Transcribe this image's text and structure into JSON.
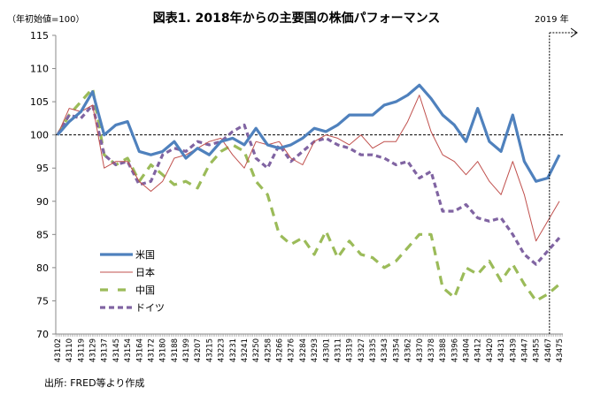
{
  "chart_data": {
    "type": "line",
    "title": "図表1. 2018年からの主要国の株価パフォーマンス",
    "ylabel": "（年初始値=100）",
    "annotation": "2019 年",
    "source": "出所: FRED等より作成",
    "ylim": [
      70,
      115
    ],
    "yticks": [
      70,
      75,
      80,
      85,
      90,
      95,
      100,
      105,
      110,
      115
    ],
    "reference_line": 100,
    "legend_position": "left-bottom",
    "categories": [
      "43102",
      "43110",
      "43119",
      "43129",
      "43137",
      "43145",
      "43154",
      "43164",
      "43172",
      "43180",
      "43188",
      "43199",
      "43207",
      "43215",
      "43223",
      "43231",
      "43241",
      "43250",
      "43258",
      "43266",
      "43276",
      "43284",
      "43293",
      "43301",
      "43311",
      "43319",
      "43327",
      "43335",
      "43343",
      "43354",
      "43362",
      "43370",
      "43378",
      "43388",
      "43396",
      "43404",
      "43412",
      "43420",
      "43431",
      "43439",
      "43447",
      "43455",
      "43467",
      "43475"
    ],
    "year_boundary_category": "43467",
    "series": [
      {
        "name": "米国",
        "color": "#4F81BD",
        "style": "solid-thick",
        "values": [
          100,
          102,
          103.5,
          106.5,
          100,
          101.5,
          102,
          97.5,
          97,
          97.5,
          99,
          96.5,
          98,
          97,
          99,
          99.5,
          98.5,
          101,
          98.5,
          98,
          98.5,
          99.5,
          101,
          100.5,
          101.5,
          103,
          103,
          103,
          104.5,
          105,
          106,
          107.5,
          105.5,
          103,
          101.5,
          99,
          104,
          99,
          97.5,
          103,
          96,
          93,
          93.5,
          97
        ]
      },
      {
        "name": "日本",
        "color": "#C0504D",
        "style": "solid-thin",
        "values": [
          100,
          104,
          103.5,
          104.5,
          95,
          96,
          96,
          93,
          91.5,
          93,
          96.5,
          97,
          98,
          99,
          99.5,
          97,
          95,
          99,
          98.5,
          99,
          96.5,
          95.5,
          99,
          100,
          99.5,
          98.5,
          100,
          98,
          99,
          99,
          102,
          106,
          100.5,
          97,
          96,
          94,
          96,
          93,
          91,
          96,
          91,
          84,
          87,
          90
        ]
      },
      {
        "name": "中国",
        "color": "#9BBB59",
        "style": "long-dash",
        "values": [
          100,
          103,
          105,
          107,
          97,
          95.5,
          96.5,
          93,
          95.5,
          94,
          92.5,
          93,
          92,
          95.5,
          97.5,
          98.5,
          97.5,
          93,
          91,
          85,
          83.5,
          84.5,
          82,
          85.5,
          81.5,
          84,
          82,
          81.5,
          80,
          81,
          83,
          85,
          85,
          77,
          75.5,
          80,
          79,
          81,
          78,
          80.5,
          77.5,
          75,
          76,
          77.5
        ]
      },
      {
        "name": "ドイツ",
        "color": "#8064A2",
        "style": "short-dash",
        "values": [
          100,
          103,
          102.5,
          104.5,
          97,
          95.5,
          96,
          92.5,
          93,
          97,
          98,
          97.5,
          99,
          98.5,
          99,
          100.5,
          101.5,
          96.5,
          95,
          98.5,
          96,
          97.5,
          99,
          99.5,
          98.5,
          98,
          97,
          97,
          96.5,
          95.5,
          96,
          93.5,
          94.5,
          88.5,
          88.5,
          89.5,
          87.5,
          87,
          87.5,
          85,
          82,
          80.5,
          82.5,
          84.5
        ]
      }
    ]
  }
}
